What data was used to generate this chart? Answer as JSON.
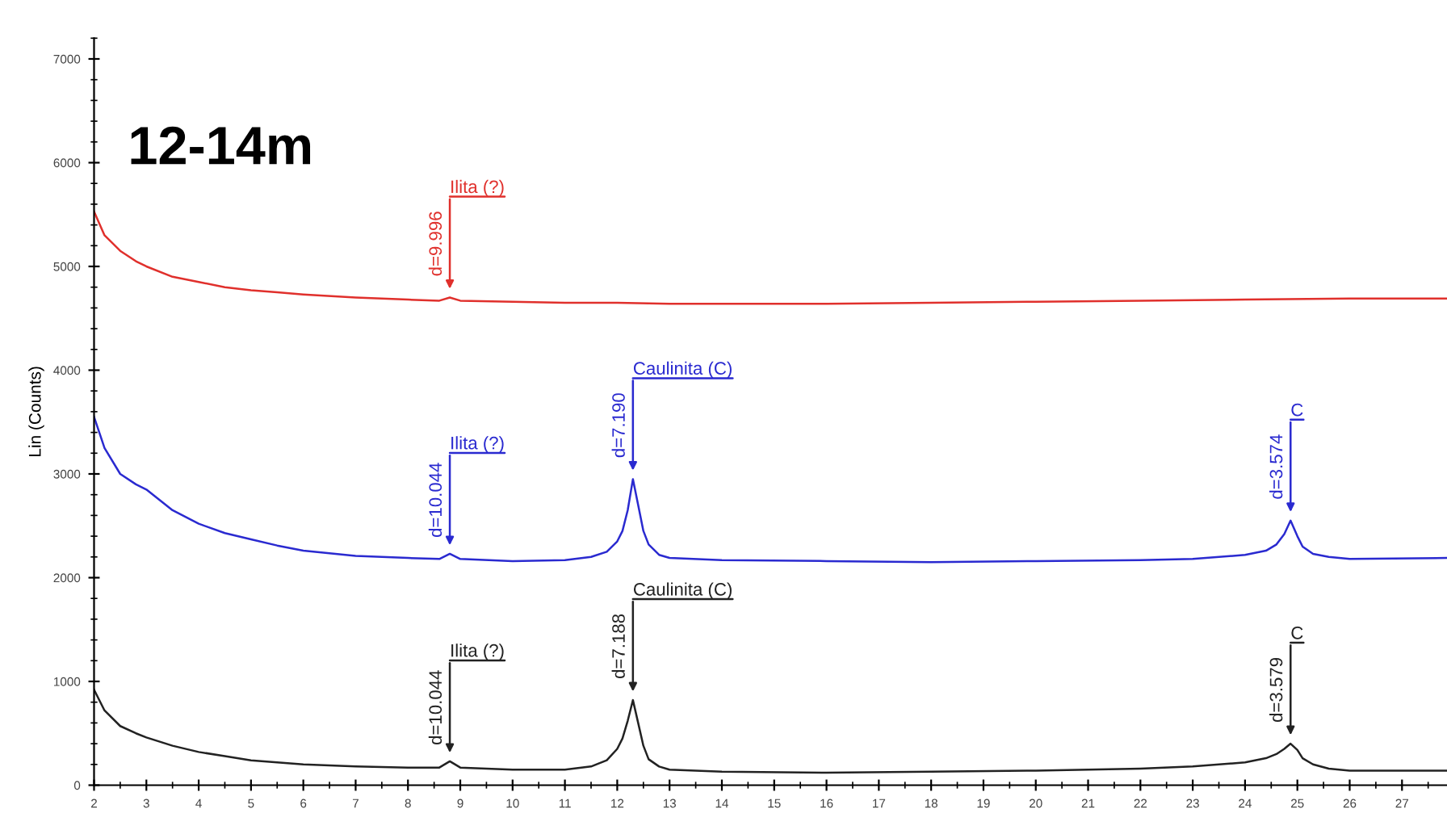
{
  "chart_data": {
    "type": "line",
    "title": "12-14m",
    "ylabel": "Lin (Counts)",
    "xlim": [
      2,
      27.86
    ],
    "xticks": [
      2,
      3,
      4,
      5,
      6,
      7,
      8,
      9,
      10,
      11,
      12,
      13,
      14,
      15,
      16,
      17,
      18,
      19,
      20,
      21,
      22,
      23,
      24,
      25,
      26,
      27
    ],
    "ylim": [
      0,
      7200
    ],
    "yticks": [
      0,
      1000,
      2000,
      3000,
      4000,
      5000,
      6000,
      7000
    ],
    "grid": false,
    "legend": false,
    "marker": "none",
    "line_style": "solid",
    "series": [
      {
        "color": "#e0302c",
        "x": [
          2,
          2.2,
          2.5,
          2.8,
          3,
          3.5,
          4,
          4.5,
          5,
          5.5,
          6,
          7,
          8,
          8.6,
          8.8,
          9,
          10,
          11,
          12,
          13,
          14,
          16,
          18,
          20,
          22,
          24,
          26,
          27.86
        ],
        "values": [
          5530,
          5300,
          5150,
          5050,
          5000,
          4900,
          4850,
          4800,
          4770,
          4750,
          4730,
          4700,
          4680,
          4670,
          4700,
          4670,
          4660,
          4650,
          4650,
          4640,
          4640,
          4640,
          4650,
          4660,
          4670,
          4680,
          4690,
          4690
        ]
      },
      {
        "color": "#2a2ad0",
        "x": [
          2,
          2.2,
          2.5,
          2.8,
          3,
          3.5,
          4,
          4.5,
          5,
          5.5,
          6,
          7,
          8,
          8.6,
          8.8,
          9,
          10,
          11,
          11.5,
          11.8,
          12,
          12.1,
          12.2,
          12.3,
          12.4,
          12.5,
          12.6,
          12.8,
          13,
          14,
          16,
          18,
          20,
          22,
          23,
          24,
          24.4,
          24.6,
          24.75,
          24.87,
          25,
          25.1,
          25.3,
          25.6,
          26,
          27.86
        ],
        "values": [
          3550,
          3250,
          3000,
          2900,
          2850,
          2650,
          2520,
          2430,
          2370,
          2310,
          2260,
          2210,
          2190,
          2180,
          2230,
          2180,
          2160,
          2170,
          2200,
          2250,
          2350,
          2450,
          2650,
          2950,
          2700,
          2450,
          2320,
          2220,
          2190,
          2170,
          2160,
          2150,
          2160,
          2170,
          2180,
          2220,
          2260,
          2320,
          2420,
          2550,
          2400,
          2300,
          2230,
          2200,
          2180,
          2190
        ]
      },
      {
        "color": "#222222",
        "x": [
          2,
          2.2,
          2.5,
          2.8,
          3,
          3.5,
          4,
          4.5,
          5,
          5.5,
          6,
          7,
          8,
          8.6,
          8.8,
          9,
          10,
          11,
          11.5,
          11.8,
          12,
          12.1,
          12.2,
          12.3,
          12.4,
          12.5,
          12.6,
          12.8,
          13,
          14,
          16,
          18,
          20,
          22,
          23,
          24,
          24.4,
          24.6,
          24.75,
          24.87,
          25,
          25.1,
          25.3,
          25.6,
          26,
          27.86
        ],
        "values": [
          920,
          720,
          570,
          500,
          460,
          380,
          320,
          280,
          240,
          220,
          200,
          180,
          170,
          170,
          230,
          170,
          150,
          150,
          180,
          240,
          350,
          450,
          620,
          820,
          600,
          380,
          250,
          180,
          150,
          130,
          120,
          130,
          140,
          160,
          180,
          220,
          260,
          300,
          350,
          400,
          340,
          260,
          200,
          160,
          140,
          140
        ]
      }
    ],
    "annotations": [
      {
        "text": "Ilita (?)",
        "x": 8.8,
        "y": 4700
      },
      {
        "text": "d=9.996",
        "x": 8.8,
        "y": 4700
      },
      {
        "text": "Ilita (?)",
        "x": 8.8,
        "y": 2230
      },
      {
        "text": "d=10.044",
        "x": 8.8,
        "y": 2230
      },
      {
        "text": "Caulinita (C)",
        "x": 12.3,
        "y": 2950
      },
      {
        "text": "d=7.190",
        "x": 12.3,
        "y": 2950
      },
      {
        "text": "C",
        "x": 24.87,
        "y": 2550
      },
      {
        "text": "d=3.574",
        "x": 24.87,
        "y": 2550
      },
      {
        "text": "Ilita (?)",
        "x": 8.8,
        "y": 230
      },
      {
        "text": "d=10.044",
        "x": 8.8,
        "y": 230
      },
      {
        "text": "Caulinita (C)",
        "x": 12.3,
        "y": 820
      },
      {
        "text": "d=7.188",
        "x": 12.3,
        "y": 820
      },
      {
        "text": "C",
        "x": 24.87,
        "y": 400
      },
      {
        "text": "d=3.579",
        "x": 24.87,
        "y": 400
      }
    ]
  }
}
